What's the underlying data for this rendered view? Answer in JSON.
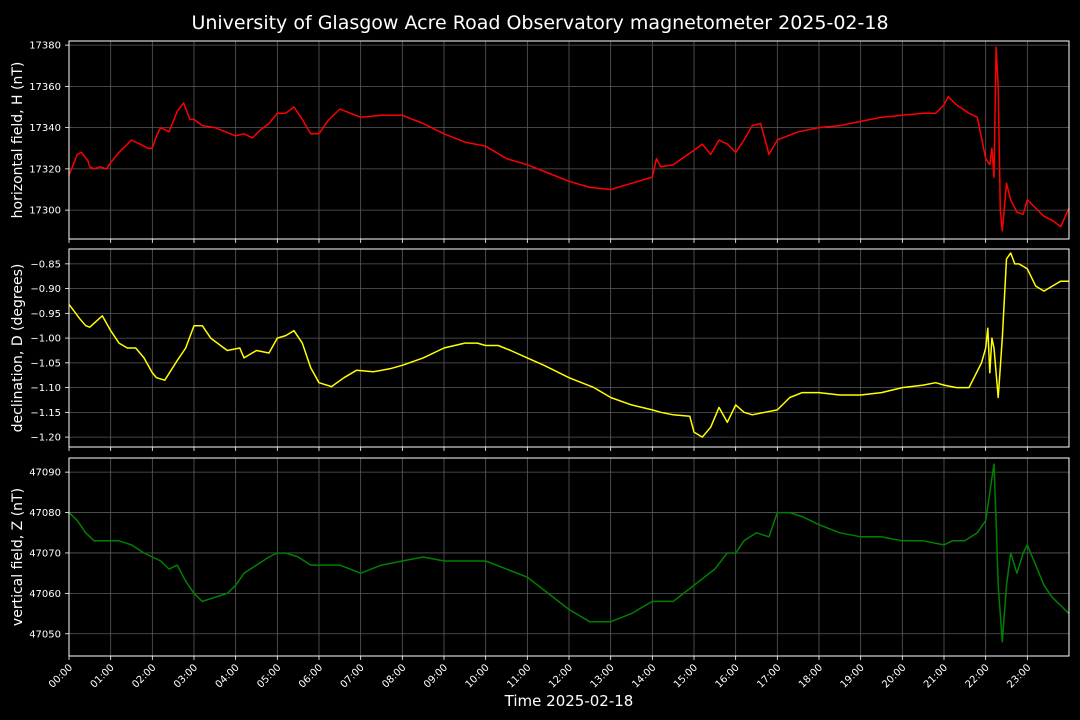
{
  "chart_data": {
    "type": "line",
    "title": "University of Glasgow Acre Road Observatory magnetometer 2025-02-18",
    "xlabel": "Time 2025-02-18",
    "x_ticks": [
      "00:00",
      "01:00",
      "02:00",
      "03:00",
      "04:00",
      "05:00",
      "06:00",
      "07:00",
      "08:00",
      "09:00",
      "10:00",
      "11:00",
      "12:00",
      "13:00",
      "14:00",
      "15:00",
      "16:00",
      "17:00",
      "18:00",
      "19:00",
      "20:00",
      "21:00",
      "22:00",
      "23:00"
    ],
    "xlim_hours": [
      0,
      24
    ],
    "grid": true,
    "panels": [
      {
        "ylabel": "horizontal field, H (nT)",
        "color": "#ff0000",
        "ylim": [
          17286,
          17382
        ],
        "y_ticks": [
          17300,
          17320,
          17340,
          17360,
          17380
        ],
        "y_tick_labels": [
          "17300",
          "17320",
          "17340",
          "17360",
          "17380"
        ],
        "hours": [
          0,
          0.1,
          0.2,
          0.3,
          0.45,
          0.5,
          0.6,
          0.75,
          0.9,
          1,
          1.2,
          1.5,
          1.7,
          1.9,
          2,
          2.1,
          2.2,
          2.4,
          2.5,
          2.6,
          2.75,
          2.9,
          3,
          3.2,
          3.5,
          3.75,
          4,
          4.2,
          4.4,
          4.6,
          4.8,
          5,
          5.2,
          5.4,
          5.6,
          5.8,
          6,
          6.2,
          6.5,
          7,
          7.5,
          8,
          8.5,
          9,
          9.5,
          10,
          10.5,
          11,
          11.5,
          12,
          12.5,
          13,
          13.5,
          14,
          14.1,
          14.2,
          14.5,
          15,
          15.2,
          15.4,
          15.6,
          15.8,
          16,
          16.2,
          16.4,
          16.6,
          16.8,
          17,
          17.5,
          18,
          18.5,
          19,
          19.5,
          20,
          20.5,
          20.8,
          21,
          21.1,
          21.3,
          21.6,
          21.8,
          21.9,
          22,
          22.1,
          22.15,
          22.2,
          22.25,
          22.3,
          22.35,
          22.4,
          22.5,
          22.6,
          22.75,
          22.9,
          23,
          23.2,
          23.4,
          23.6,
          23.8,
          24
        ],
        "values": [
          17317,
          17322,
          17327,
          17328,
          17324,
          17321,
          17320,
          17321,
          17320,
          17323,
          17328,
          17334,
          17332,
          17330,
          17330,
          17336,
          17340,
          17338,
          17343,
          17348,
          17352,
          17344,
          17344,
          17341,
          17340,
          17338,
          17336,
          17337,
          17335,
          17339,
          17342,
          17347,
          17347,
          17350,
          17344,
          17337,
          17337,
          17343,
          17349,
          17345,
          17346,
          17346,
          17342,
          17337,
          17333,
          17331,
          17325,
          17322,
          17318,
          17314,
          17311,
          17310,
          17313,
          17316,
          17325,
          17321,
          17322,
          17329,
          17332,
          17327,
          17334,
          17332,
          17328,
          17334,
          17341,
          17342,
          17327,
          17334,
          17338,
          17340,
          17341,
          17343,
          17345,
          17346,
          17347,
          17347,
          17351,
          17355,
          17351,
          17347,
          17345,
          17335,
          17325,
          17322,
          17330,
          17316,
          17379,
          17360,
          17300,
          17290,
          17313,
          17305,
          17299,
          17298,
          17305,
          17301,
          17297,
          17295,
          17292,
          17301
        ]
      },
      {
        "ylabel": "declination, D (degrees)",
        "color": "#ffff00",
        "ylim": [
          -1.22,
          -0.82
        ],
        "y_ticks": [
          -1.2,
          -1.15,
          -1.1,
          -1.05,
          -1.0,
          -0.95,
          -0.9,
          -0.85
        ],
        "y_tick_labels": [
          "−1.20",
          "−1.15",
          "−1.10",
          "−1.05",
          "−1.00",
          "−0.95",
          "−0.90",
          "−0.85"
        ],
        "hours": [
          0,
          0.1,
          0.25,
          0.4,
          0.5,
          0.6,
          0.8,
          1,
          1.2,
          1.4,
          1.6,
          1.8,
          2,
          2.1,
          2.3,
          2.6,
          2.8,
          3,
          3.2,
          3.4,
          3.8,
          4.1,
          4.2,
          4.5,
          4.8,
          5,
          5.2,
          5.4,
          5.6,
          5.8,
          6,
          6.3,
          6.6,
          6.9,
          7.3,
          7.7,
          8,
          8.5,
          9,
          9.5,
          9.8,
          10,
          10.3,
          10.6,
          11,
          11.4,
          12,
          12.6,
          13,
          13.5,
          14,
          14.2,
          14.5,
          14.9,
          15,
          15.2,
          15.4,
          15.6,
          15.8,
          16,
          16.2,
          16.4,
          16.7,
          17,
          17.3,
          17.6,
          18,
          18.5,
          19,
          19.5,
          20,
          20.5,
          20.8,
          21,
          21.3,
          21.6,
          21.9,
          22,
          22.05,
          22.1,
          22.15,
          22.2,
          22.3,
          22.4,
          22.5,
          22.6,
          22.7,
          22.8,
          23,
          23.2,
          23.4,
          23.6,
          23.8,
          24
        ],
        "values": [
          -0.932,
          -0.943,
          -0.96,
          -0.975,
          -0.978,
          -0.97,
          -0.955,
          -0.985,
          -1.01,
          -1.02,
          -1.02,
          -1.04,
          -1.07,
          -1.08,
          -1.085,
          -1.045,
          -1.02,
          -0.975,
          -0.975,
          -1.0,
          -1.025,
          -1.02,
          -1.04,
          -1.025,
          -1.03,
          -1.0,
          -0.995,
          -0.985,
          -1.01,
          -1.06,
          -1.09,
          -1.098,
          -1.08,
          -1.065,
          -1.068,
          -1.062,
          -1.055,
          -1.04,
          -1.02,
          -1.01,
          -1.01,
          -1.015,
          -1.015,
          -1.025,
          -1.04,
          -1.055,
          -1.08,
          -1.1,
          -1.12,
          -1.135,
          -1.145,
          -1.15,
          -1.155,
          -1.158,
          -1.19,
          -1.2,
          -1.18,
          -1.14,
          -1.17,
          -1.135,
          -1.15,
          -1.155,
          -1.15,
          -1.145,
          -1.12,
          -1.11,
          -1.11,
          -1.115,
          -1.115,
          -1.11,
          -1.1,
          -1.095,
          -1.09,
          -1.095,
          -1.1,
          -1.1,
          -1.05,
          -1.02,
          -0.98,
          -1.07,
          -1.0,
          -1.02,
          -1.12,
          -1.0,
          -0.84,
          -0.828,
          -0.85,
          -0.85,
          -0.86,
          -0.895,
          -0.905,
          -0.895,
          -0.885,
          -0.885
        ]
      },
      {
        "ylabel": "vertical field, Z (nT)",
        "color": "#008000",
        "ylim": [
          47044.5,
          47093.5
        ],
        "y_ticks": [
          47050,
          47060,
          47070,
          47080,
          47090
        ],
        "y_tick_labels": [
          "47050",
          "47060",
          "47070",
          "47080",
          "47090"
        ],
        "hours": [
          0,
          0.2,
          0.4,
          0.6,
          0.8,
          1,
          1.2,
          1.5,
          1.8,
          2,
          2.2,
          2.4,
          2.6,
          2.8,
          3,
          3.2,
          3.5,
          3.8,
          4,
          4.2,
          4.5,
          4.8,
          5,
          5.2,
          5.5,
          5.8,
          6,
          6.5,
          7,
          7.5,
          8,
          8.5,
          9,
          9.5,
          10,
          10.5,
          11,
          11.5,
          12,
          12.5,
          13,
          13.5,
          14,
          14.5,
          15,
          15.5,
          15.8,
          16,
          16.2,
          16.5,
          16.8,
          17,
          17.3,
          17.6,
          18,
          18.5,
          19,
          19.5,
          20,
          20.5,
          21,
          21.2,
          21.5,
          21.8,
          22,
          22.1,
          22.2,
          22.25,
          22.3,
          22.4,
          22.5,
          22.6,
          22.75,
          22.9,
          23,
          23.2,
          23.4,
          23.6,
          23.8,
          24
        ],
        "values": [
          47080,
          47078,
          47075,
          47073,
          47073,
          47073,
          47073,
          47072,
          47070,
          47069,
          47068,
          47066,
          47067,
          47063,
          47060,
          47058,
          47059,
          47060,
          47062,
          47065,
          47067,
          47069,
          47070,
          47070,
          47069,
          47067,
          47067,
          47067,
          47065,
          47067,
          47068,
          47069,
          47068,
          47068,
          47068,
          47066,
          47064,
          47060,
          47056,
          47053,
          47053,
          47055,
          47058,
          47058,
          47062,
          47066,
          47070,
          47070,
          47073,
          47075,
          47074,
          47080,
          47080,
          47079,
          47077,
          47075,
          47074,
          47074,
          47073,
          47073,
          47072,
          47073,
          47073,
          47075,
          47078,
          47085,
          47092,
          47078,
          47062,
          47048,
          47062,
          47070,
          47065,
          47070,
          47072,
          47067,
          47062,
          47059,
          47057,
          47055
        ]
      }
    ]
  }
}
